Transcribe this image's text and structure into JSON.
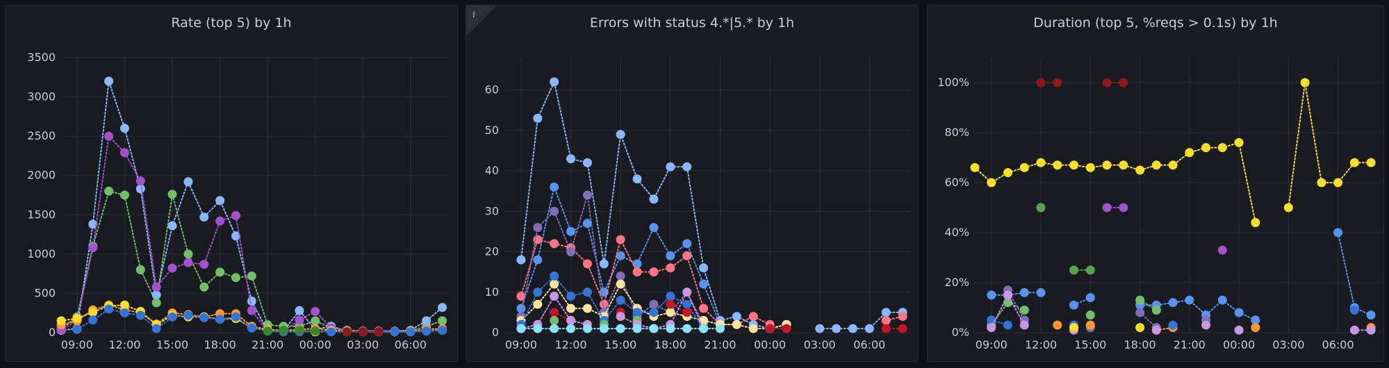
{
  "chart_data": [
    {
      "type": "scatter",
      "title": "Rate (top 5) by 1h",
      "ylim": [
        0,
        3500
      ],
      "yticks": [
        "0",
        "500",
        "1000",
        "1500",
        "2000",
        "2500",
        "3000",
        "3500"
      ],
      "ytick_values": [
        0,
        500,
        1000,
        1500,
        2000,
        2500,
        3000,
        3500
      ],
      "xticks": [
        "09:00",
        "12:00",
        "15:00",
        "18:00",
        "21:00",
        "00:00",
        "03:00",
        "06:00"
      ],
      "xtick_hours": [
        9,
        12,
        15,
        18,
        21,
        24,
        27,
        30
      ],
      "xlim_hours": [
        8,
        32.5
      ],
      "grid": true,
      "series": [
        {
          "color": "#73bf69",
          "x": [
            8,
            9,
            10,
            11,
            12,
            13,
            14,
            15,
            16,
            17,
            18,
            19,
            20,
            21,
            22,
            23,
            24,
            25,
            26,
            27,
            28,
            29,
            30,
            31,
            32
          ],
          "y": [
            50,
            200,
            1100,
            1800,
            1750,
            800,
            380,
            1760,
            1000,
            580,
            770,
            700,
            720,
            100,
            80,
            80,
            150,
            60,
            30,
            20,
            20,
            20,
            20,
            80,
            150
          ]
        },
        {
          "color": "#8ab8ff",
          "x": [
            8,
            9,
            10,
            11,
            12,
            13,
            14,
            15,
            16,
            17,
            18,
            19,
            20,
            21,
            22,
            23,
            24,
            25,
            26,
            27,
            28,
            29,
            30,
            31,
            32
          ],
          "y": [
            30,
            50,
            1380,
            3200,
            2600,
            1830,
            480,
            1360,
            1920,
            1470,
            1680,
            1230,
            400,
            20,
            20,
            280,
            40,
            80,
            20,
            20,
            20,
            20,
            30,
            150,
            320
          ]
        },
        {
          "color": "#a352cc",
          "x": [
            8,
            9,
            10,
            11,
            12,
            13,
            14,
            15,
            16,
            17,
            18,
            19,
            20,
            21,
            22,
            23,
            24,
            25,
            26,
            27,
            28,
            29,
            30,
            31,
            32
          ],
          "y": [
            40,
            150,
            1080,
            2500,
            2290,
            1930,
            580,
            820,
            890,
            870,
            1420,
            1490,
            280,
            20,
            20,
            160,
            270,
            60,
            20,
            20,
            20,
            20,
            20,
            30,
            40
          ]
        },
        {
          "color": "#ff9830",
          "x": [
            8,
            9,
            10,
            11,
            12,
            13,
            14,
            15,
            16,
            17,
            18,
            19,
            20,
            21,
            22,
            23,
            24,
            25,
            26,
            27,
            28,
            29,
            30,
            31,
            32
          ],
          "y": [
            100,
            150,
            290,
            350,
            290,
            250,
            110,
            250,
            230,
            200,
            240,
            240,
            80,
            40,
            30,
            40,
            50,
            30,
            20,
            10,
            10,
            10,
            20,
            40,
            50
          ]
        },
        {
          "color": "#fade2a",
          "x": [
            8,
            9,
            10,
            11,
            12,
            13,
            14,
            15,
            16,
            17,
            18,
            19,
            20,
            21,
            22,
            23,
            24,
            25,
            26,
            27,
            28,
            29,
            30,
            31,
            32
          ],
          "y": [
            150,
            180,
            260,
            340,
            350,
            270,
            100,
            220,
            200,
            200,
            170,
            180,
            60,
            30,
            20,
            20,
            10,
            20,
            10,
            10,
            10,
            10,
            10,
            20,
            30
          ]
        },
        {
          "color": "#3274d9",
          "x": [
            9,
            10,
            11,
            12,
            13,
            14,
            15,
            16,
            17,
            18,
            19,
            20,
            21,
            22,
            23,
            24,
            25,
            26,
            27,
            28,
            29,
            30,
            31,
            32
          ],
          "y": [
            40,
            160,
            300,
            250,
            220,
            50,
            200,
            220,
            190,
            170,
            200,
            60,
            20,
            10,
            10,
            20,
            10,
            10,
            10,
            10,
            10,
            10,
            20,
            30
          ]
        },
        {
          "color": "#8f1a1a",
          "x": [
            26,
            27,
            28
          ],
          "y": [
            10,
            10,
            10
          ]
        },
        {
          "color": "#37872d",
          "x": [
            21,
            22,
            23,
            24
          ],
          "y": [
            20,
            30,
            30,
            20
          ]
        }
      ]
    },
    {
      "type": "scatter",
      "title": "Errors with status 4.*|5.* by 1h",
      "ylim": [
        0,
        68
      ],
      "yticks": [
        "0",
        "10",
        "20",
        "30",
        "40",
        "50",
        "60"
      ],
      "ytick_values": [
        0,
        10,
        20,
        30,
        40,
        50,
        60
      ],
      "xticks": [
        "09:00",
        "12:00",
        "15:00",
        "18:00",
        "21:00",
        "00:00",
        "03:00",
        "06:00"
      ],
      "xtick_hours": [
        9,
        12,
        15,
        18,
        21,
        24,
        27,
        30
      ],
      "xlim_hours": [
        8,
        32.5
      ],
      "grid": true,
      "series": [
        {
          "color": "#8ab8ff",
          "x": [
            9,
            10,
            11,
            12,
            13,
            14,
            15,
            16,
            17,
            18,
            19,
            20,
            21,
            22,
            23,
            24,
            25,
            27,
            28,
            29,
            30,
            31,
            32
          ],
          "y": [
            18,
            53,
            62,
            43,
            42,
            17,
            49,
            38,
            33,
            41,
            41,
            16,
            3,
            4,
            2,
            1,
            2,
            1,
            1,
            1,
            1,
            5,
            5
          ]
        },
        {
          "color": "#5794f2",
          "x": [
            9,
            10,
            11,
            12,
            13,
            14,
            15,
            16,
            17,
            18,
            19,
            20,
            21
          ],
          "y": [
            6,
            18,
            36,
            25,
            27,
            10,
            19,
            17,
            26,
            19,
            22,
            12,
            2
          ]
        },
        {
          "color": "#ff7383",
          "x": [
            9,
            10,
            11,
            12,
            13,
            14,
            15,
            16,
            17,
            18,
            19,
            20,
            21,
            22,
            23,
            24,
            31,
            32
          ],
          "y": [
            9,
            23,
            22,
            21,
            17,
            7,
            23,
            15,
            15,
            16,
            19,
            6,
            2,
            2,
            4,
            2,
            3,
            4
          ]
        },
        {
          "color": "#806eb7",
          "x": [
            9,
            10,
            11,
            12,
            13,
            14,
            15,
            16,
            17,
            18,
            19,
            20
          ],
          "y": [
            4,
            26,
            30,
            20,
            34,
            5,
            14,
            4,
            7,
            5,
            10,
            2
          ]
        },
        {
          "color": "#ffe39d",
          "x": [
            9,
            10,
            11,
            12,
            13,
            14,
            15,
            16,
            17,
            18,
            19,
            20,
            21,
            22,
            23,
            24,
            25
          ],
          "y": [
            3,
            7,
            12,
            6,
            6,
            4,
            12,
            6,
            4,
            5,
            4,
            3,
            2,
            2,
            1,
            1,
            2
          ]
        },
        {
          "color": "#3274d9",
          "x": [
            9,
            10,
            11,
            12,
            13,
            14,
            15,
            16,
            17,
            18,
            19,
            20
          ],
          "y": [
            2,
            10,
            14,
            9,
            10,
            3,
            8,
            5,
            5,
            9,
            7,
            1
          ]
        },
        {
          "color": "#c4162a",
          "x": [
            11,
            12,
            15,
            18,
            19,
            24,
            25,
            31,
            32
          ],
          "y": [
            5,
            3,
            5,
            7,
            5,
            1,
            1,
            1,
            1
          ]
        },
        {
          "color": "#73bf69",
          "x": [
            11,
            14,
            16
          ],
          "y": [
            3,
            2,
            3
          ]
        },
        {
          "color": "#ca95e5",
          "x": [
            9,
            10,
            11,
            12,
            13,
            15,
            16,
            17,
            18,
            19,
            20
          ],
          "y": [
            1,
            2,
            9,
            3,
            2,
            4,
            2,
            1,
            2,
            10,
            1
          ]
        },
        {
          "color": "#8ae4ff",
          "x": [
            9,
            10,
            11,
            12,
            13,
            14,
            15,
            16,
            17,
            18,
            19,
            20,
            21
          ],
          "y": [
            1,
            1,
            1,
            1,
            1,
            1,
            1,
            1,
            1,
            1,
            1,
            1,
            1
          ]
        }
      ]
    },
    {
      "type": "scatter",
      "title": "Duration (top 5, %reqs > 0.1s) by 1h",
      "ylim": [
        0,
        110
      ],
      "yticks": [
        "0%",
        "20%",
        "40%",
        "60%",
        "80%",
        "100%"
      ],
      "ytick_values": [
        0,
        20,
        40,
        60,
        80,
        100
      ],
      "xticks": [
        "09:00",
        "12:00",
        "15:00",
        "18:00",
        "21:00",
        "00:00",
        "03:00",
        "06:00"
      ],
      "xtick_hours": [
        9,
        12,
        15,
        18,
        21,
        24,
        27,
        30
      ],
      "xlim_hours": [
        8,
        32.5
      ],
      "grid": true,
      "series": [
        {
          "color": "#fade2a",
          "x": [
            8,
            9,
            10,
            11,
            12,
            13,
            14,
            15,
            16,
            17,
            18,
            19,
            20,
            21,
            22,
            23,
            24,
            25,
            26,
            27,
            28,
            29,
            30,
            31,
            32
          ],
          "y": [
            66,
            60,
            64,
            66,
            68,
            67,
            67,
            66,
            67,
            67,
            65,
            67,
            67,
            72,
            74,
            74,
            76,
            44,
            null,
            50,
            100,
            60,
            60,
            68,
            68
          ]
        },
        {
          "color": "#8f1a1a",
          "x": [
            12,
            13,
            16,
            17
          ],
          "y": [
            100,
            100,
            100,
            100
          ]
        },
        {
          "color": "#a352cc",
          "x": [
            12,
            16,
            17,
            23
          ],
          "y": [
            50,
            50,
            50,
            33
          ]
        },
        {
          "color": "#56a64b",
          "x": [
            12,
            14,
            15
          ],
          "y": [
            50,
            25,
            25
          ]
        },
        {
          "color": "#5794f2",
          "x": [
            9,
            10,
            11,
            12,
            14,
            15,
            18,
            19,
            20,
            21,
            22,
            23,
            24,
            25,
            30,
            31,
            32
          ],
          "y": [
            15,
            15,
            16,
            16,
            11,
            14,
            11,
            11,
            12,
            13,
            7,
            13,
            8,
            5,
            40,
            10,
            7
          ]
        },
        {
          "color": "#73bf69",
          "x": [
            9,
            10,
            11,
            15,
            18,
            19
          ],
          "y": [
            3,
            12,
            9,
            7,
            13,
            9
          ]
        },
        {
          "color": "#806eb7",
          "x": [
            10,
            11,
            15,
            18,
            19,
            22
          ],
          "y": [
            17,
            5,
            2,
            8,
            2,
            5
          ]
        },
        {
          "color": "#ff9830",
          "x": [
            13,
            15,
            19,
            20,
            25,
            32
          ],
          "y": [
            3,
            3,
            1,
            2,
            2,
            2
          ]
        },
        {
          "color": "#3274d9",
          "x": [
            9,
            10,
            14,
            20,
            31
          ],
          "y": [
            5,
            3,
            3,
            3,
            9
          ]
        },
        {
          "color": "#ca95e5",
          "x": [
            9,
            10,
            11,
            14,
            19,
            22,
            24,
            31,
            32
          ],
          "y": [
            2,
            15,
            3,
            1,
            1,
            3,
            1,
            1,
            1
          ]
        },
        {
          "color": "#fade2a",
          "x": [
            14,
            18
          ],
          "y": [
            2,
            2
          ]
        }
      ]
    }
  ]
}
